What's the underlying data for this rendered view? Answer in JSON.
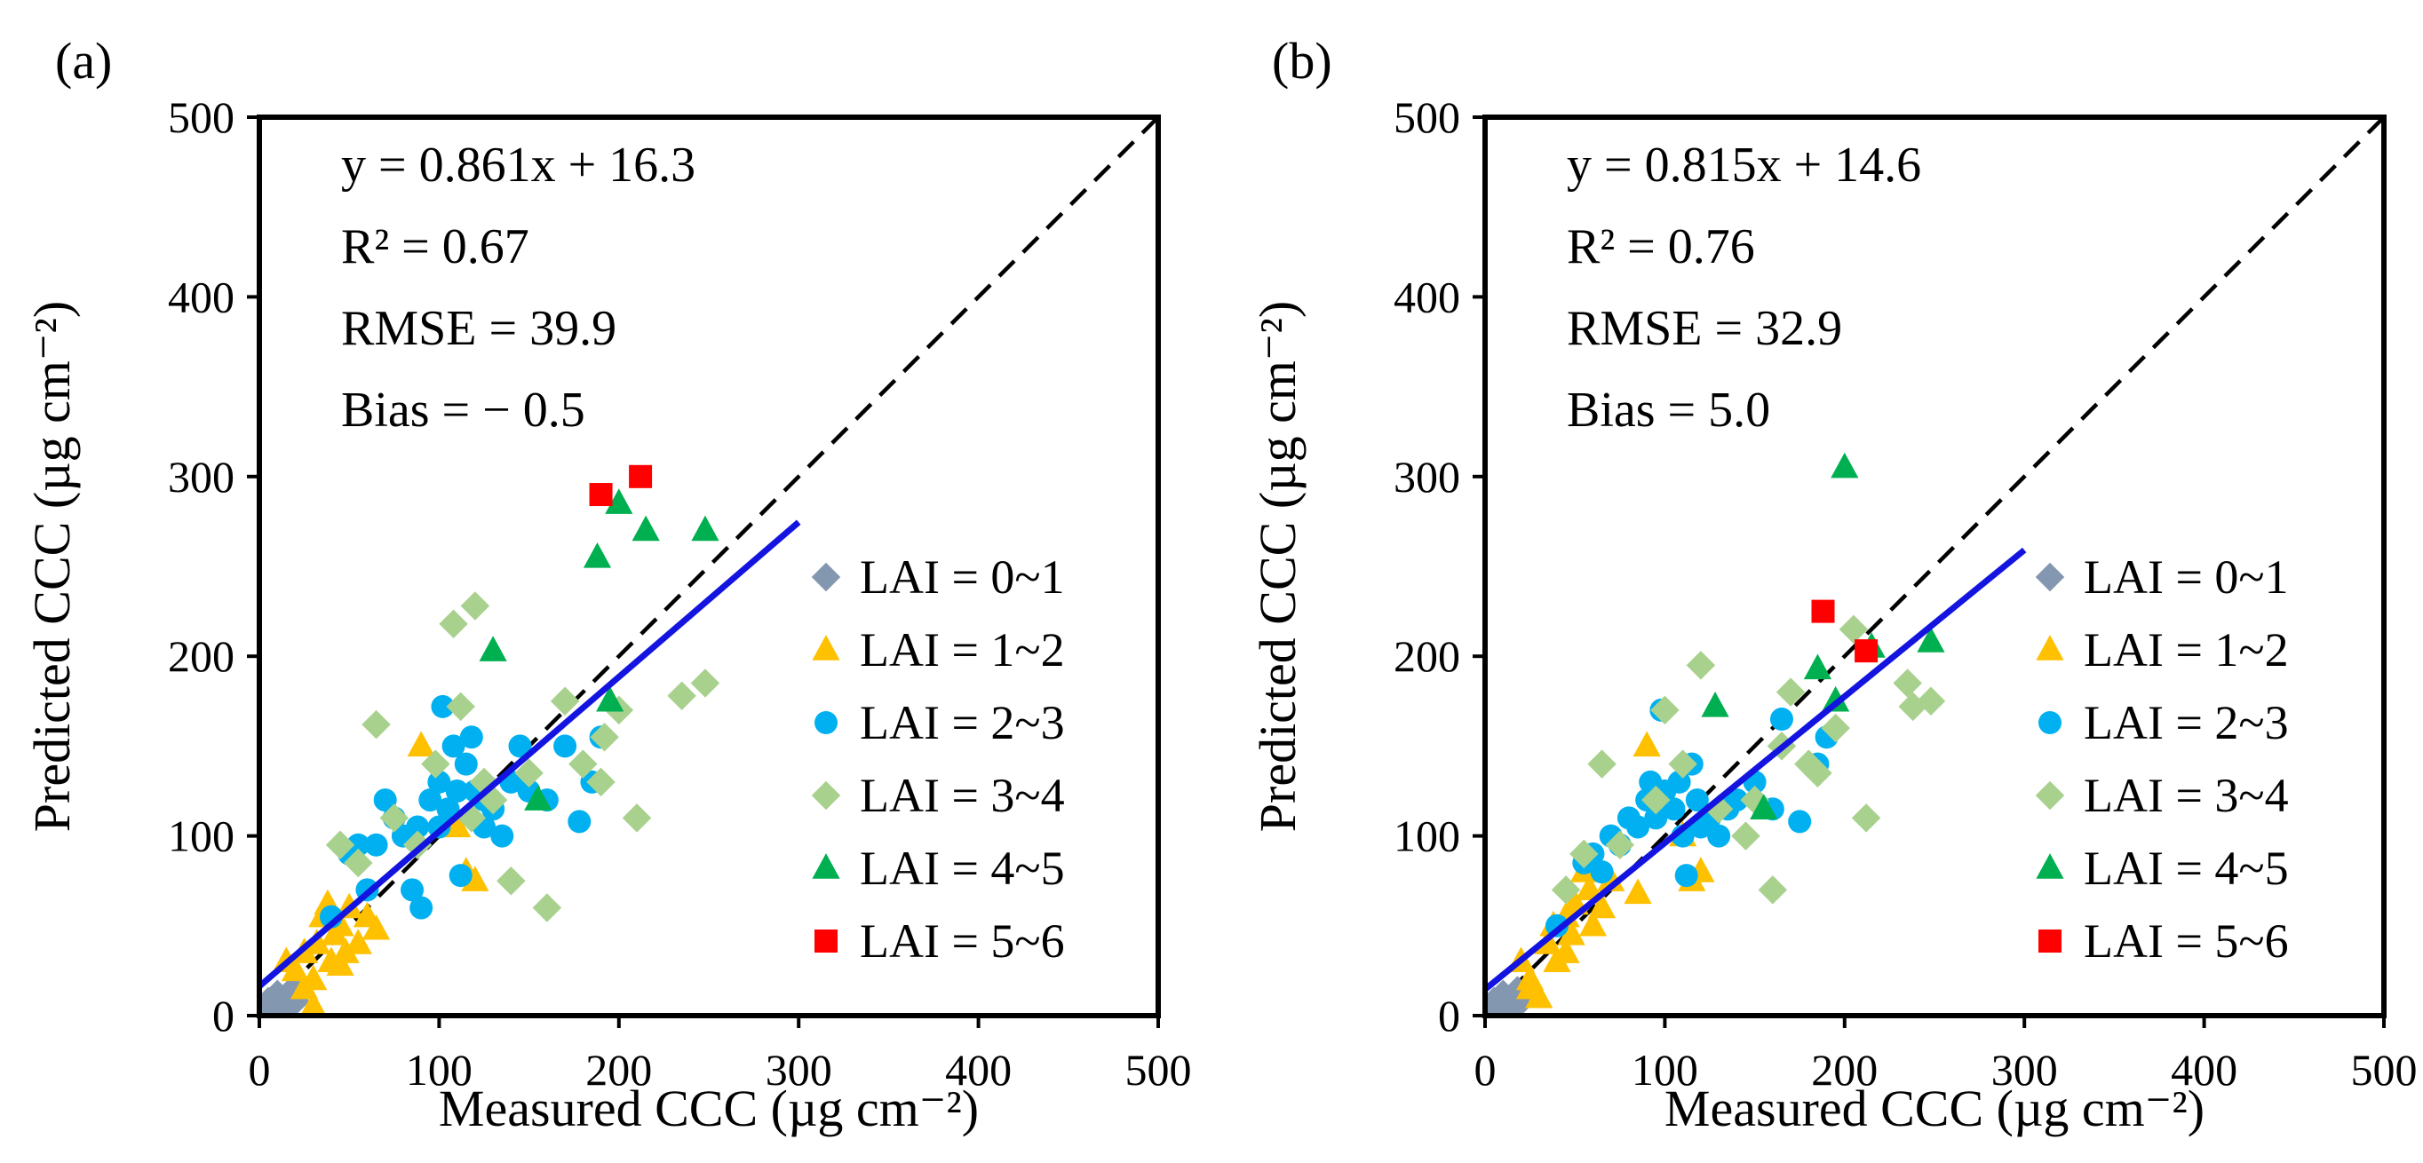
{
  "chart_data": [
    {
      "panel_label": "(a)",
      "type": "scatter",
      "xlabel": "Measured CCC (µg cm⁻²)",
      "ylabel": "Predicted CCC (µg cm⁻²)",
      "xlim": [
        0,
        500
      ],
      "ylim": [
        0,
        500
      ],
      "xticks": [
        "0",
        "100",
        "200",
        "300",
        "400",
        "500"
      ],
      "yticks": [
        "0",
        "100",
        "200",
        "300",
        "400",
        "500"
      ],
      "legend_position": "right",
      "stats": [
        "y = 0.861x + 16.3",
        "R² = 0.67",
        "RMSE = 39.9",
        "Bias = − 0.5"
      ],
      "one_to_one_line": [
        [
          0,
          0
        ],
        [
          500,
          500
        ]
      ],
      "fit_line": {
        "slope": 0.861,
        "intercept": 16.3,
        "x_range": [
          0,
          300
        ],
        "color": "#1414e0"
      },
      "series": [
        {
          "name": "LAI = 0~1",
          "marker": "diamond",
          "color": "#8497b0",
          "points": [
            [
              5,
              8
            ],
            [
              8,
              5
            ],
            [
              10,
              12
            ],
            [
              12,
              6
            ],
            [
              15,
              10
            ],
            [
              18,
              14
            ],
            [
              20,
              8
            ],
            [
              7,
              3
            ],
            [
              22,
              12
            ],
            [
              14,
              4
            ]
          ]
        },
        {
          "name": "LAI = 1~2",
          "marker": "triangle",
          "color": "#ffc000",
          "points": [
            [
              15,
              30
            ],
            [
              20,
              25
            ],
            [
              25,
              35
            ],
            [
              30,
              20
            ],
            [
              32,
              40
            ],
            [
              35,
              55
            ],
            [
              38,
              62
            ],
            [
              40,
              30
            ],
            [
              42,
              45
            ],
            [
              45,
              50
            ],
            [
              48,
              35
            ],
            [
              50,
              60
            ],
            [
              55,
              40
            ],
            [
              60,
              55
            ],
            [
              65,
              48
            ],
            [
              30,
              5
            ],
            [
              90,
              150
            ],
            [
              110,
              105
            ],
            [
              115,
              80
            ],
            [
              120,
              75
            ],
            [
              25,
              15
            ],
            [
              45,
              28
            ]
          ]
        },
        {
          "name": "LAI = 2~3",
          "marker": "circle",
          "color": "#00b0f0",
          "points": [
            [
              40,
              55
            ],
            [
              50,
              90
            ],
            [
              55,
              95
            ],
            [
              60,
              70
            ],
            [
              65,
              95
            ],
            [
              70,
              120
            ],
            [
              75,
              110
            ],
            [
              80,
              100
            ],
            [
              85,
              70
            ],
            [
              88,
              105
            ],
            [
              90,
              60
            ],
            [
              95,
              120
            ],
            [
              100,
              105
            ],
            [
              100,
              130
            ],
            [
              102,
              172
            ],
            [
              105,
              115
            ],
            [
              108,
              150
            ],
            [
              110,
              125
            ],
            [
              112,
              78
            ],
            [
              115,
              140
            ],
            [
              118,
              155
            ],
            [
              120,
              125
            ],
            [
              125,
              120
            ],
            [
              125,
              105
            ],
            [
              130,
              115
            ],
            [
              135,
              100
            ],
            [
              140,
              130
            ],
            [
              145,
              150
            ],
            [
              150,
              125
            ],
            [
              160,
              120
            ],
            [
              170,
              150
            ],
            [
              178,
              108
            ],
            [
              185,
              130
            ],
            [
              190,
              155
            ]
          ]
        },
        {
          "name": "LAI = 3~4",
          "marker": "diamond",
          "color": "#a9d18e",
          "points": [
            [
              45,
              95
            ],
            [
              55,
              85
            ],
            [
              65,
              162
            ],
            [
              75,
              110
            ],
            [
              88,
              95
            ],
            [
              98,
              140
            ],
            [
              108,
              218
            ],
            [
              112,
              172
            ],
            [
              118,
              110
            ],
            [
              120,
              228
            ],
            [
              125,
              130
            ],
            [
              130,
              120
            ],
            [
              140,
              75
            ],
            [
              150,
              135
            ],
            [
              160,
              60
            ],
            [
              170,
              175
            ],
            [
              180,
              140
            ],
            [
              190,
              130
            ],
            [
              192,
              155
            ],
            [
              200,
              170
            ],
            [
              210,
              110
            ],
            [
              235,
              178
            ],
            [
              248,
              185
            ]
          ]
        },
        {
          "name": "LAI = 4~5",
          "marker": "triangle",
          "color": "#00b050",
          "points": [
            [
              130,
              203
            ],
            [
              155,
              120
            ],
            [
              188,
              255
            ],
            [
              195,
              175
            ],
            [
              200,
              285
            ],
            [
              215,
              270
            ],
            [
              248,
              270
            ]
          ]
        },
        {
          "name": "LAI = 5~6",
          "marker": "square",
          "color": "#ff0000",
          "points": [
            [
              190,
              290
            ],
            [
              212,
              300
            ]
          ]
        }
      ]
    },
    {
      "panel_label": "(b)",
      "type": "scatter",
      "xlabel": "Measured CCC (µg cm⁻²)",
      "ylabel": "Predicted CCC (µg cm⁻²)",
      "xlim": [
        0,
        500
      ],
      "ylim": [
        0,
        500
      ],
      "xticks": [
        "0",
        "100",
        "200",
        "300",
        "400",
        "500"
      ],
      "yticks": [
        "0",
        "100",
        "200",
        "300",
        "400",
        "500"
      ],
      "legend_position": "right",
      "stats": [
        "y = 0.815x + 14.6",
        "R² = 0.76",
        "RMSE = 32.9",
        "Bias = 5.0"
      ],
      "one_to_one_line": [
        [
          0,
          0
        ],
        [
          500,
          500
        ]
      ],
      "fit_line": {
        "slope": 0.815,
        "intercept": 14.6,
        "x_range": [
          0,
          300
        ],
        "color": "#1414e0"
      },
      "series": [
        {
          "name": "LAI = 0~1",
          "marker": "diamond",
          "color": "#8497b0",
          "points": [
            [
              5,
              8
            ],
            [
              8,
              5
            ],
            [
              10,
              12
            ],
            [
              12,
              6
            ],
            [
              15,
              10
            ],
            [
              18,
              14
            ],
            [
              20,
              8
            ],
            [
              7,
              3
            ],
            [
              22,
              12
            ],
            [
              14,
              4
            ]
          ]
        },
        {
          "name": "LAI = 1~2",
          "marker": "triangle",
          "color": "#ffc000",
          "points": [
            [
              20,
              30
            ],
            [
              25,
              20
            ],
            [
              30,
              10
            ],
            [
              35,
              40
            ],
            [
              38,
              50
            ],
            [
              40,
              30
            ],
            [
              45,
              55
            ],
            [
              48,
              45
            ],
            [
              50,
              62
            ],
            [
              55,
              80
            ],
            [
              58,
              70
            ],
            [
              60,
              50
            ],
            [
              65,
              60
            ],
            [
              70,
              75
            ],
            [
              85,
              68
            ],
            [
              90,
              150
            ],
            [
              110,
              100
            ],
            [
              115,
              75
            ],
            [
              120,
              80
            ],
            [
              25,
              15
            ],
            [
              45,
              35
            ]
          ]
        },
        {
          "name": "LAI = 2~3",
          "marker": "circle",
          "color": "#00b0f0",
          "points": [
            [
              40,
              50
            ],
            [
              55,
              85
            ],
            [
              60,
              90
            ],
            [
              65,
              80
            ],
            [
              70,
              100
            ],
            [
              75,
              95
            ],
            [
              80,
              110
            ],
            [
              85,
              105
            ],
            [
              90,
              120
            ],
            [
              92,
              130
            ],
            [
              95,
              110
            ],
            [
              98,
              170
            ],
            [
              100,
              125
            ],
            [
              105,
              115
            ],
            [
              108,
              130
            ],
            [
              110,
              100
            ],
            [
              112,
              78
            ],
            [
              115,
              140
            ],
            [
              118,
              120
            ],
            [
              120,
              105
            ],
            [
              125,
              110
            ],
            [
              130,
              100
            ],
            [
              135,
              115
            ],
            [
              140,
              120
            ],
            [
              150,
              130
            ],
            [
              160,
              115
            ],
            [
              165,
              165
            ],
            [
              175,
              108
            ],
            [
              185,
              140
            ],
            [
              190,
              155
            ]
          ]
        },
        {
          "name": "LAI = 3~4",
          "marker": "diamond",
          "color": "#a9d18e",
          "points": [
            [
              45,
              70
            ],
            [
              55,
              90
            ],
            [
              65,
              140
            ],
            [
              75,
              95
            ],
            [
              95,
              120
            ],
            [
              100,
              170
            ],
            [
              110,
              140
            ],
            [
              120,
              195
            ],
            [
              130,
              115
            ],
            [
              145,
              100
            ],
            [
              150,
              120
            ],
            [
              160,
              70
            ],
            [
              165,
              150
            ],
            [
              170,
              180
            ],
            [
              180,
              140
            ],
            [
              185,
              135
            ],
            [
              195,
              160
            ],
            [
              205,
              215
            ],
            [
              212,
              110
            ],
            [
              235,
              185
            ],
            [
              238,
              172
            ],
            [
              248,
              175
            ]
          ]
        },
        {
          "name": "LAI = 4~5",
          "marker": "triangle",
          "color": "#00b050",
          "points": [
            [
              128,
              172
            ],
            [
              155,
              115
            ],
            [
              185,
              193
            ],
            [
              195,
              175
            ],
            [
              200,
              305
            ],
            [
              215,
              205
            ],
            [
              248,
              208
            ]
          ]
        },
        {
          "name": "LAI = 5~6",
          "marker": "square",
          "color": "#ff0000",
          "points": [
            [
              188,
              225
            ],
            [
              212,
              203
            ]
          ]
        }
      ]
    }
  ]
}
